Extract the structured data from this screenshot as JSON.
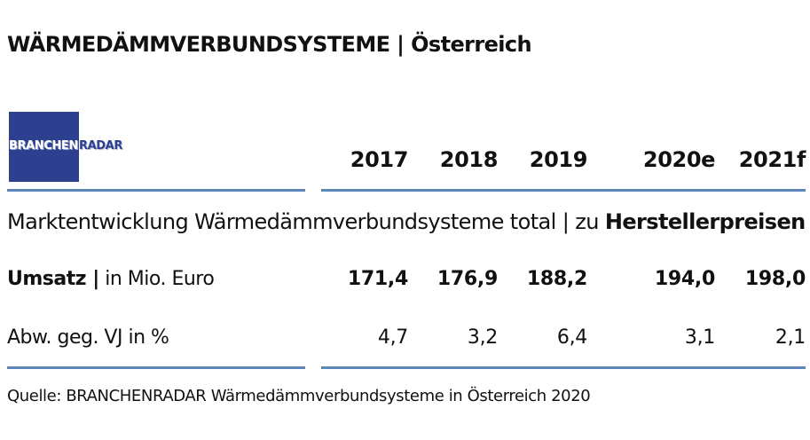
{
  "title": "WÄRMEDÄMMVERBUNDSYSTEME | Österreich",
  "logo": {
    "part1": "BRANCHEN",
    "part2": "RADAR",
    "color": "#2d3f8f"
  },
  "years": [
    "2017",
    "2018",
    "2019",
    "2020e",
    "2021f"
  ],
  "section": {
    "prefix": "Marktentwicklung Wärmedämmverbundsysteme total | zu ",
    "bold": "Herstellerpreisen"
  },
  "rows": [
    {
      "label_bold": "Umsatz |",
      "label_rest": " in Mio. Euro",
      "values": [
        "171,4",
        "176,9",
        "188,2",
        "194,0",
        "198,0"
      ]
    },
    {
      "label_bold": "",
      "label_rest": "Abw. geg. VJ in %",
      "values": [
        "4,7",
        "3,2",
        "6,4",
        "3,1",
        "2,1"
      ]
    }
  ],
  "source": "Quelle: BRANCHENRADAR Wärmedämmverbundsysteme in Österreich 2020",
  "rule_color": "#5f86b8"
}
